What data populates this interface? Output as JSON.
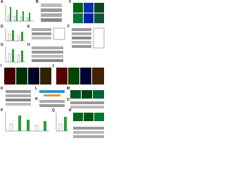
{
  "figure": {
    "panels": [
      "A",
      "B",
      "C",
      "D",
      "E",
      "F",
      "G",
      "H",
      "I",
      "J",
      "K",
      "L",
      "M",
      "N",
      "O",
      "P",
      "Q",
      "R"
    ]
  }
}
